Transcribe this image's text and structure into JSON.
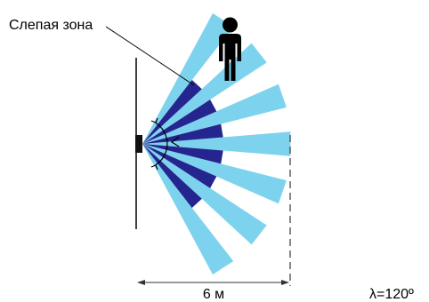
{
  "labels": {
    "blind_zone": "Слепая зона",
    "distance": "6 м",
    "angle": "λ=120º"
  },
  "colors": {
    "beam_light": "#7dd3ee",
    "beam_dark": "#24258f",
    "ink": "#000000"
  },
  "icons": {
    "person": "person-icon",
    "sensor": "sensor-icon"
  }
}
